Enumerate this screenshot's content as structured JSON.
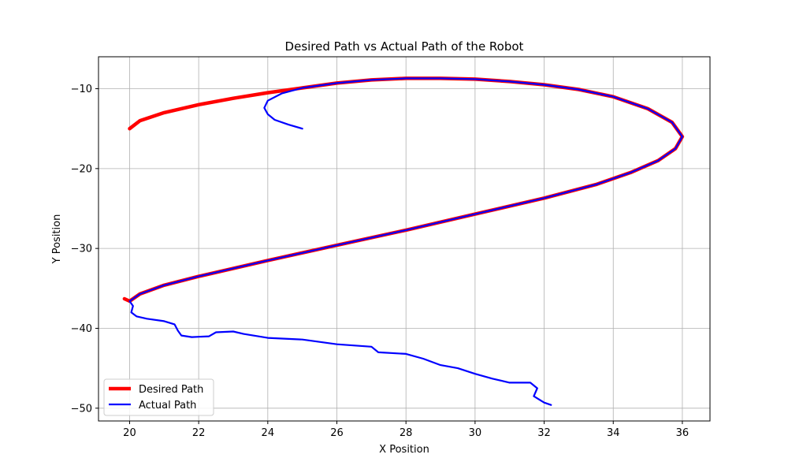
{
  "chart_data": {
    "type": "line",
    "title": "Desired Path vs Actual Path of the Robot",
    "xlabel": "X Position",
    "ylabel": "Y Position",
    "xlim": [
      19.1,
      36.8
    ],
    "ylim": [
      -51.6,
      -6.0
    ],
    "xticks": [
      20,
      22,
      24,
      26,
      28,
      30,
      32,
      34,
      36
    ],
    "yticks": [
      -10,
      -20,
      -30,
      -40,
      -50
    ],
    "xtick_labels": [
      "20",
      "22",
      "24",
      "26",
      "28",
      "30",
      "32",
      "34",
      "36"
    ],
    "ytick_labels": [
      "−10",
      "−20",
      "−30",
      "−40",
      "−50"
    ],
    "grid": true,
    "legend_position": "lower-left",
    "series": [
      {
        "name": "Desired Path",
        "color": "#ff0000",
        "style": "thick",
        "points": [
          [
            20.0,
            -15.0
          ],
          [
            20.3,
            -14.0
          ],
          [
            21.0,
            -13.0
          ],
          [
            22.0,
            -12.0
          ],
          [
            23.0,
            -11.2
          ],
          [
            24.0,
            -10.5
          ],
          [
            25.0,
            -9.9
          ],
          [
            26.0,
            -9.3
          ],
          [
            27.0,
            -8.9
          ],
          [
            28.0,
            -8.7
          ],
          [
            29.0,
            -8.7
          ],
          [
            30.0,
            -8.8
          ],
          [
            31.0,
            -9.1
          ],
          [
            32.0,
            -9.5
          ],
          [
            33.0,
            -10.1
          ],
          [
            34.0,
            -11.0
          ],
          [
            35.0,
            -12.5
          ],
          [
            35.7,
            -14.2
          ],
          [
            36.0,
            -16.0
          ],
          [
            35.8,
            -17.5
          ],
          [
            35.3,
            -19.0
          ],
          [
            34.5,
            -20.5
          ],
          [
            33.5,
            -22.0
          ],
          [
            32.0,
            -23.7
          ],
          [
            30.0,
            -25.7
          ],
          [
            28.0,
            -27.7
          ],
          [
            26.0,
            -29.6
          ],
          [
            24.0,
            -31.5
          ],
          [
            22.0,
            -33.5
          ],
          [
            21.0,
            -34.6
          ],
          [
            20.3,
            -35.7
          ],
          [
            20.0,
            -36.6
          ],
          [
            19.85,
            -36.3
          ]
        ]
      },
      {
        "name": "Actual Path",
        "color": "#0000ff",
        "style": "thin",
        "points": [
          [
            25.0,
            -15.0
          ],
          [
            24.6,
            -14.5
          ],
          [
            24.2,
            -13.9
          ],
          [
            24.0,
            -13.2
          ],
          [
            23.9,
            -12.4
          ],
          [
            24.0,
            -11.5
          ],
          [
            24.4,
            -10.6
          ],
          [
            25.0,
            -9.9
          ],
          [
            26.0,
            -9.3
          ],
          [
            27.0,
            -8.9
          ],
          [
            28.0,
            -8.7
          ],
          [
            29.0,
            -8.7
          ],
          [
            30.0,
            -8.8
          ],
          [
            31.0,
            -9.1
          ],
          [
            32.0,
            -9.5
          ],
          [
            33.0,
            -10.1
          ],
          [
            34.0,
            -11.0
          ],
          [
            35.0,
            -12.5
          ],
          [
            35.7,
            -14.2
          ],
          [
            36.0,
            -16.0
          ],
          [
            35.8,
            -17.5
          ],
          [
            35.3,
            -19.0
          ],
          [
            34.5,
            -20.5
          ],
          [
            33.5,
            -22.0
          ],
          [
            32.0,
            -23.7
          ],
          [
            30.0,
            -25.7
          ],
          [
            28.0,
            -27.7
          ],
          [
            26.0,
            -29.6
          ],
          [
            24.0,
            -31.5
          ],
          [
            22.0,
            -33.5
          ],
          [
            21.0,
            -34.6
          ],
          [
            20.3,
            -35.7
          ],
          [
            20.0,
            -36.6
          ],
          [
            20.1,
            -37.2
          ],
          [
            20.05,
            -38.0
          ],
          [
            20.2,
            -38.5
          ],
          [
            20.5,
            -38.8
          ],
          [
            21.0,
            -39.1
          ],
          [
            21.3,
            -39.5
          ],
          [
            21.4,
            -40.3
          ],
          [
            21.5,
            -40.9
          ],
          [
            21.8,
            -41.1
          ],
          [
            22.3,
            -41.0
          ],
          [
            22.5,
            -40.5
          ],
          [
            23.0,
            -40.4
          ],
          [
            23.3,
            -40.7
          ],
          [
            24.0,
            -41.2
          ],
          [
            25.0,
            -41.4
          ],
          [
            26.0,
            -42.0
          ],
          [
            27.0,
            -42.3
          ],
          [
            27.2,
            -43.0
          ],
          [
            28.0,
            -43.2
          ],
          [
            28.5,
            -43.8
          ],
          [
            29.0,
            -44.6
          ],
          [
            29.5,
            -45.0
          ],
          [
            30.0,
            -45.7
          ],
          [
            30.5,
            -46.3
          ],
          [
            31.0,
            -46.8
          ],
          [
            31.6,
            -46.8
          ],
          [
            31.8,
            -47.5
          ],
          [
            31.7,
            -48.5
          ],
          [
            32.0,
            -49.3
          ],
          [
            32.2,
            -49.6
          ]
        ]
      }
    ]
  }
}
